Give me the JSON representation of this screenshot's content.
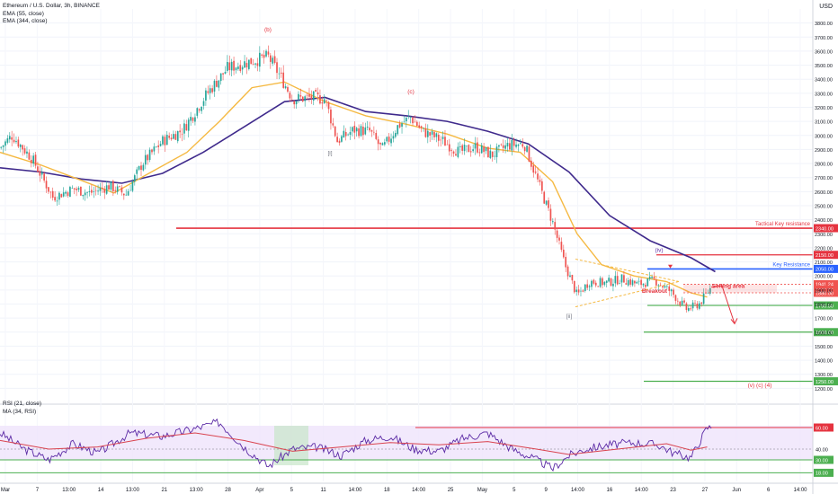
{
  "header": {
    "symbol_title": "Ethereum / U.S. Dollar, 3h, BINANCE",
    "ema_fast_label": "EMA (55, close)",
    "ema_slow_label": "EMA (344, close)",
    "currency": "USD"
  },
  "rsi_header": {
    "rsi_label": "RSI (21, close)",
    "ma_label": "MA (34, RSI)"
  },
  "colors": {
    "up": "#26a69a",
    "down": "#ef5350",
    "ema_fast": "#f5b942",
    "ema_slow": "#3f2a8c",
    "resistance": "#e5333f",
    "key_resistance": "#2962ff",
    "support": "#4caf50",
    "rsi_line": "#5b2aa5",
    "rsi_ma": "#d9434f",
    "rsi_band": "#efe4fb"
  },
  "price_axis": {
    "ticks": [
      1200,
      1300,
      1400,
      1500,
      1600,
      1700,
      1800,
      1900,
      2000,
      2100,
      2200,
      2300,
      2400,
      2500,
      2600,
      2700,
      2800,
      2900,
      3000,
      3100,
      3200,
      3300,
      3400,
      3500,
      3600,
      3700,
      3800
    ],
    "labels": [
      "1200.00",
      "1300.00",
      "1400.00",
      "1500.00",
      "1600.00",
      "1700.00",
      "1800.00",
      "1900.00",
      "2000.00",
      "2100.00",
      "2200.00",
      "2300.00",
      "2400.00",
      "2500.00",
      "2600.00",
      "2700.00",
      "2800.00",
      "2900.00",
      "3000.00",
      "3100.00",
      "3200.00",
      "3300.00",
      "3400.00",
      "3500.00",
      "3600.00",
      "3700.00",
      "3800.00"
    ]
  },
  "time_axis": {
    "labels": [
      "Mar",
      "7",
      "13:00",
      "14",
      "13:00",
      "21",
      "13:00",
      "28",
      "Apr",
      "5",
      "11",
      "14:00",
      "18",
      "14:00",
      "25",
      "May",
      "5",
      "9",
      "14:00",
      "16",
      "14:00",
      "23",
      "27",
      "Jun",
      "6",
      "14:00"
    ]
  },
  "levels": [
    {
      "name": "Tactical Key resistance",
      "price": 2340,
      "label": "2340.00",
      "color": "#e5333f"
    },
    {
      "name": "",
      "price": 2150,
      "label": "2150.00",
      "color": "#e5333f"
    },
    {
      "name": "Key Resistance",
      "price": 2050,
      "label": "2050.00",
      "color": "#2962ff"
    },
    {
      "name": "",
      "price": 1790,
      "label": "1790.00",
      "color": "#4caf50"
    },
    {
      "name": "",
      "price": 1600,
      "label": "1600.00",
      "color": "#4caf50"
    },
    {
      "name": "",
      "price": 1250,
      "label": "1250.00",
      "color": "#4caf50"
    }
  ],
  "price_tags": [
    {
      "price": 1941.24,
      "label": "1941.24",
      "color": "#ef5350"
    },
    {
      "price": 1902.22,
      "label": "1902.22",
      "color": "#ef5350"
    },
    {
      "price": 1880.0,
      "label": "1880.00",
      "color": "#ef5350"
    }
  ],
  "annotations": {
    "wave_b": "(b)",
    "wave_i": "[i]",
    "wave_ii": "[ii]",
    "wave_c": "(c)",
    "wave_iv": "(iv)",
    "breakout": "Breakout",
    "selling_area": "Selling area",
    "target": "(v) (c) (4)"
  },
  "rsi_axis": {
    "levels": [
      {
        "value": 60,
        "label": "60.00",
        "color": "#e5333f"
      },
      {
        "value": 40,
        "label": "40.00",
        "color": "#787b86"
      },
      {
        "value": 30,
        "label": "30.00",
        "color": "#4caf50"
      },
      {
        "value": 18,
        "label": "18.00",
        "color": "#4caf50"
      }
    ]
  },
  "chart_data": {
    "type": "candlestick",
    "title": "Ethereum / U.S. Dollar, 3h, BINANCE",
    "ylim": [
      1100,
      3900
    ],
    "grid": true,
    "price_path": [
      {
        "t": 0,
        "p": 2910
      },
      {
        "t": 0.015,
        "p": 3000
      },
      {
        "t": 0.04,
        "p": 2830
      },
      {
        "t": 0.065,
        "p": 2560
      },
      {
        "t": 0.09,
        "p": 2620
      },
      {
        "t": 0.11,
        "p": 2590
      },
      {
        "t": 0.135,
        "p": 2640
      },
      {
        "t": 0.155,
        "p": 2580
      },
      {
        "t": 0.175,
        "p": 2800
      },
      {
        "t": 0.2,
        "p": 2960
      },
      {
        "t": 0.225,
        "p": 3040
      },
      {
        "t": 0.255,
        "p": 3300
      },
      {
        "t": 0.28,
        "p": 3480
      },
      {
        "t": 0.31,
        "p": 3530
      },
      {
        "t": 0.33,
        "p": 3560
      },
      {
        "t": 0.345,
        "p": 3420
      },
      {
        "t": 0.36,
        "p": 3260
      },
      {
        "t": 0.385,
        "p": 3270
      },
      {
        "t": 0.4,
        "p": 3260
      },
      {
        "t": 0.415,
        "p": 2960
      },
      {
        "t": 0.435,
        "p": 3040
      },
      {
        "t": 0.455,
        "p": 3030
      },
      {
        "t": 0.47,
        "p": 2900
      },
      {
        "t": 0.49,
        "p": 3070
      },
      {
        "t": 0.505,
        "p": 3130
      },
      {
        "t": 0.52,
        "p": 3030
      },
      {
        "t": 0.545,
        "p": 2960
      },
      {
        "t": 0.565,
        "p": 2880
      },
      {
        "t": 0.585,
        "p": 2920
      },
      {
        "t": 0.605,
        "p": 2860
      },
      {
        "t": 0.625,
        "p": 2930
      },
      {
        "t": 0.645,
        "p": 2940
      },
      {
        "t": 0.665,
        "p": 2620
      },
      {
        "t": 0.68,
        "p": 2380
      },
      {
        "t": 0.695,
        "p": 2080
      },
      {
        "t": 0.71,
        "p": 1860
      },
      {
        "t": 0.725,
        "p": 1960
      },
      {
        "t": 0.745,
        "p": 1950
      },
      {
        "t": 0.765,
        "p": 1980
      },
      {
        "t": 0.785,
        "p": 1940
      },
      {
        "t": 0.805,
        "p": 1970
      },
      {
        "t": 0.825,
        "p": 1890
      },
      {
        "t": 0.845,
        "p": 1760
      },
      {
        "t": 0.86,
        "p": 1800
      },
      {
        "t": 0.875,
        "p": 1920
      }
    ],
    "ema_55": [
      {
        "t": 0,
        "p": 2880
      },
      {
        "t": 0.05,
        "p": 2790
      },
      {
        "t": 0.1,
        "p": 2680
      },
      {
        "t": 0.14,
        "p": 2590
      },
      {
        "t": 0.18,
        "p": 2720
      },
      {
        "t": 0.23,
        "p": 2880
      },
      {
        "t": 0.27,
        "p": 3100
      },
      {
        "t": 0.31,
        "p": 3340
      },
      {
        "t": 0.35,
        "p": 3380
      },
      {
        "t": 0.4,
        "p": 3240
      },
      {
        "t": 0.45,
        "p": 3140
      },
      {
        "t": 0.5,
        "p": 3080
      },
      {
        "t": 0.55,
        "p": 3010
      },
      {
        "t": 0.6,
        "p": 2910
      },
      {
        "t": 0.64,
        "p": 2880
      },
      {
        "t": 0.68,
        "p": 2670
      },
      {
        "t": 0.71,
        "p": 2300
      },
      {
        "t": 0.74,
        "p": 2080
      },
      {
        "t": 0.78,
        "p": 2000
      },
      {
        "t": 0.82,
        "p": 1960
      },
      {
        "t": 0.85,
        "p": 1880
      },
      {
        "t": 0.87,
        "p": 1850
      }
    ],
    "ema_344": [
      {
        "t": 0,
        "p": 2770
      },
      {
        "t": 0.05,
        "p": 2740
      },
      {
        "t": 0.1,
        "p": 2690
      },
      {
        "t": 0.15,
        "p": 2660
      },
      {
        "t": 0.2,
        "p": 2730
      },
      {
        "t": 0.25,
        "p": 2880
      },
      {
        "t": 0.3,
        "p": 3060
      },
      {
        "t": 0.35,
        "p": 3240
      },
      {
        "t": 0.4,
        "p": 3270
      },
      {
        "t": 0.45,
        "p": 3170
      },
      {
        "t": 0.5,
        "p": 3140
      },
      {
        "t": 0.55,
        "p": 3100
      },
      {
        "t": 0.6,
        "p": 3030
      },
      {
        "t": 0.65,
        "p": 2940
      },
      {
        "t": 0.7,
        "p": 2740
      },
      {
        "t": 0.75,
        "p": 2430
      },
      {
        "t": 0.8,
        "p": 2250
      },
      {
        "t": 0.85,
        "p": 2130
      },
      {
        "t": 0.88,
        "p": 2030
      }
    ],
    "rsi_21": [
      {
        "t": 0,
        "p": 55
      },
      {
        "t": 0.03,
        "p": 40
      },
      {
        "t": 0.06,
        "p": 30
      },
      {
        "t": 0.09,
        "p": 45
      },
      {
        "t": 0.12,
        "p": 36
      },
      {
        "t": 0.16,
        "p": 55
      },
      {
        "t": 0.2,
        "p": 52
      },
      {
        "t": 0.24,
        "p": 59
      },
      {
        "t": 0.27,
        "p": 65
      },
      {
        "t": 0.3,
        "p": 42
      },
      {
        "t": 0.33,
        "p": 24
      },
      {
        "t": 0.36,
        "p": 40
      },
      {
        "t": 0.39,
        "p": 42
      },
      {
        "t": 0.42,
        "p": 34
      },
      {
        "t": 0.45,
        "p": 48
      },
      {
        "t": 0.48,
        "p": 52
      },
      {
        "t": 0.51,
        "p": 40
      },
      {
        "t": 0.54,
        "p": 38
      },
      {
        "t": 0.57,
        "p": 50
      },
      {
        "t": 0.6,
        "p": 55
      },
      {
        "t": 0.63,
        "p": 40
      },
      {
        "t": 0.66,
        "p": 30
      },
      {
        "t": 0.68,
        "p": 22
      },
      {
        "t": 0.7,
        "p": 34
      },
      {
        "t": 0.72,
        "p": 40
      },
      {
        "t": 0.75,
        "p": 44
      },
      {
        "t": 0.78,
        "p": 46
      },
      {
        "t": 0.81,
        "p": 44
      },
      {
        "t": 0.83,
        "p": 36
      },
      {
        "t": 0.85,
        "p": 32
      },
      {
        "t": 0.87,
        "p": 60
      }
    ],
    "rsi_ma_34": [
      {
        "t": 0,
        "p": 48
      },
      {
        "t": 0.06,
        "p": 40
      },
      {
        "t": 0.12,
        "p": 42
      },
      {
        "t": 0.18,
        "p": 50
      },
      {
        "t": 0.24,
        "p": 55
      },
      {
        "t": 0.3,
        "p": 48
      },
      {
        "t": 0.36,
        "p": 38
      },
      {
        "t": 0.42,
        "p": 42
      },
      {
        "t": 0.48,
        "p": 46
      },
      {
        "t": 0.54,
        "p": 44
      },
      {
        "t": 0.6,
        "p": 47
      },
      {
        "t": 0.66,
        "p": 40
      },
      {
        "t": 0.7,
        "p": 35
      },
      {
        "t": 0.76,
        "p": 40
      },
      {
        "t": 0.82,
        "p": 45
      },
      {
        "t": 0.85,
        "p": 39
      },
      {
        "t": 0.87,
        "p": 42
      }
    ]
  }
}
